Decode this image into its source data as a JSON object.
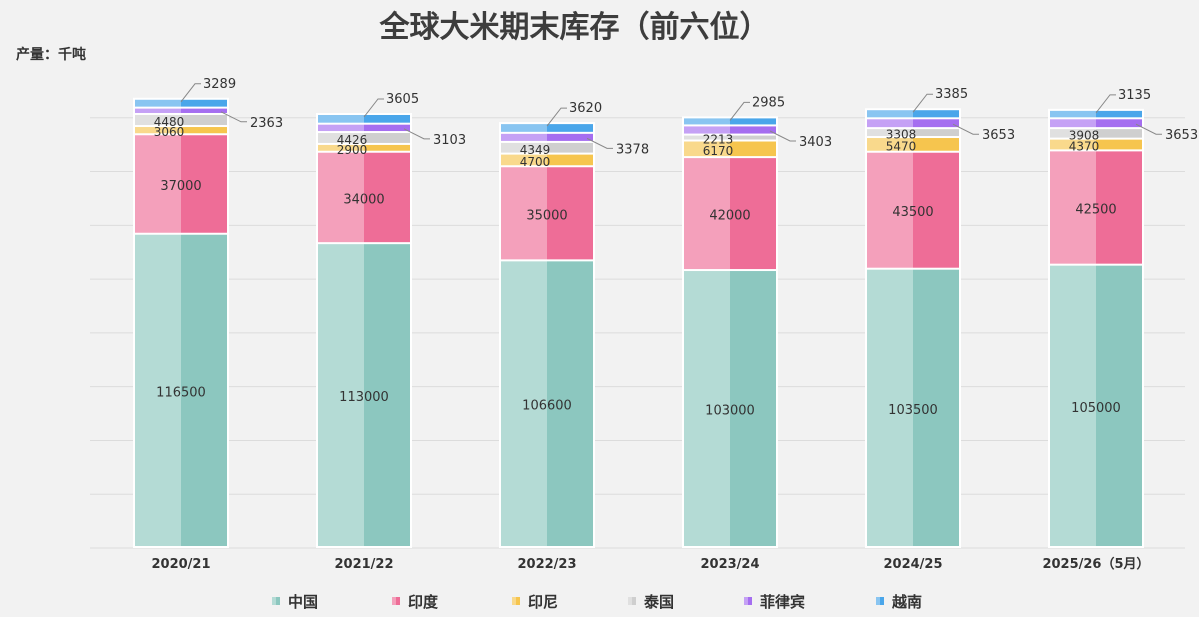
{
  "title": "全球大米期末库存（前六位）",
  "unit_label": "产量：千吨",
  "chart_data": {
    "type": "bar",
    "stacked": true,
    "categories": [
      "2020/21",
      "2021/22",
      "2022/23",
      "2023/24",
      "2024/25",
      "2025/26（5月）"
    ],
    "series": [
      {
        "name": "中国",
        "color": "#8cc7bf",
        "values": [
          116500,
          113000,
          106600,
          103000,
          103500,
          105000
        ]
      },
      {
        "name": "印度",
        "color": "#ee6d97",
        "values": [
          37000,
          34000,
          35000,
          42000,
          43500,
          42500
        ]
      },
      {
        "name": "印尼",
        "color": "#f6c54e",
        "values": [
          3060,
          2900,
          4700,
          6170,
          5470,
          4370
        ]
      },
      {
        "name": "泰国",
        "color": "#cfcfcf",
        "values": [
          4480,
          4426,
          4349,
          2213,
          3308,
          3908
        ]
      },
      {
        "name": "菲律宾",
        "color": "#a56ef0",
        "values": [
          2363,
          3103,
          3378,
          3403,
          3653,
          3653
        ]
      },
      {
        "name": "越南",
        "color": "#4aa6ea",
        "values": [
          3289,
          3605,
          3620,
          2985,
          3385,
          3135
        ]
      }
    ],
    "ylim": [
      0,
      180000
    ],
    "grid": true,
    "legend_position": "bottom"
  }
}
